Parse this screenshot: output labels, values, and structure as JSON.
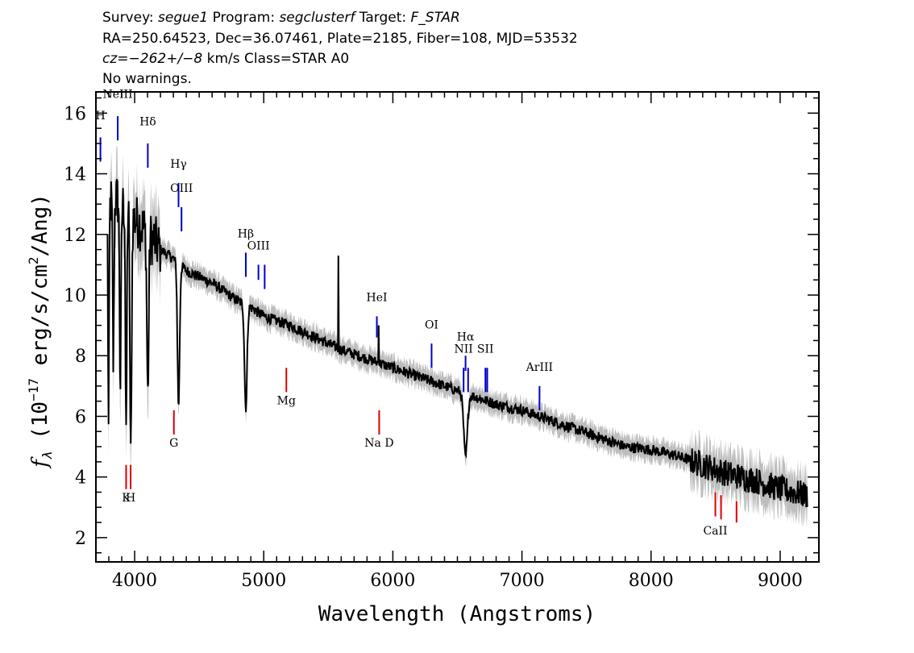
{
  "header": {
    "line1": {
      "survey_label": "Survey: ",
      "survey": "segue1",
      "program_label": " Program: ",
      "program": "segclusterf",
      "target_label": " Target: ",
      "target": "F_STAR"
    },
    "line2": "RA=250.64523, Dec=36.07461, Plate=2185, Fiber=108, MJD=53532",
    "line3": {
      "cz": "cz=−262+/−8",
      "rest": " km/s Class=STAR A0"
    },
    "line4": "No warnings."
  },
  "colors": {
    "flux": "#000000",
    "error_band": "#bdbdbd",
    "emission": "#0000cc",
    "absorption": "#dd0000"
  },
  "chart_data": {
    "type": "line",
    "xlabel": "Wavelength (Angstroms)",
    "ylabel": {
      "f": "f",
      "sub": "λ",
      "text1": " (10",
      "sup1": "−17",
      "text2": " erg/s/cm",
      "sup2": "2",
      "text3": "/Ang)"
    },
    "xlim": [
      3700,
      9300
    ],
    "ylim": [
      1.2,
      16.7
    ],
    "x_ticks": [
      4000,
      5000,
      6000,
      7000,
      8000,
      9000
    ],
    "y_ticks": [
      2,
      4,
      6,
      8,
      10,
      12,
      14,
      16
    ],
    "continuum_x": [
      3800,
      3850,
      3900,
      3950,
      4000,
      4050,
      4100,
      4150,
      4200,
      4300,
      4400,
      4500,
      4600,
      4700,
      4800,
      4900,
      5000,
      5200,
      5400,
      5600,
      5800,
      6000,
      6200,
      6400,
      6600,
      6800,
      7000,
      7200,
      7400,
      7600,
      7800,
      8000,
      8200,
      8400,
      8600,
      8800,
      9000,
      9200
    ],
    "continuum_y": [
      13.0,
      13.2,
      13.0,
      12.8,
      12.5,
      12.3,
      12.0,
      11.8,
      11.5,
      11.2,
      10.8,
      10.6,
      10.4,
      10.1,
      9.8,
      9.6,
      9.3,
      9.0,
      8.6,
      8.2,
      7.9,
      7.6,
      7.3,
      7.0,
      6.7,
      6.4,
      6.2,
      5.9,
      5.6,
      5.3,
      5.0,
      4.9,
      4.7,
      4.4,
      4.1,
      3.9,
      3.6,
      3.4
    ],
    "absorption_features": [
      {
        "x": 3798,
        "depth": 7.5,
        "width": 6
      },
      {
        "x": 3835,
        "depth": 5.5,
        "width": 7
      },
      {
        "x": 3889,
        "depth": 6.0,
        "width": 8
      },
      {
        "x": 3934,
        "depth": 8.0,
        "width": 7
      },
      {
        "x": 3970,
        "depth": 8.2,
        "width": 9
      },
      {
        "x": 4102,
        "depth": 5.3,
        "width": 10
      },
      {
        "x": 4340,
        "depth": 4.7,
        "width": 12
      },
      {
        "x": 4861,
        "depth": 3.4,
        "width": 14
      },
      {
        "x": 6563,
        "depth": 2.1,
        "width": 20
      }
    ],
    "spikes": [
      {
        "x": 5577,
        "y": 11.3
      },
      {
        "x": 5890,
        "y": 9.0
      }
    ],
    "emission_lines": [
      {
        "label": "H",
        "x": 3735,
        "y_top": 15.2,
        "y_bot": 14.4,
        "label_y": 15.8
      },
      {
        "label": "NeIII",
        "x": 3869,
        "y_top": 15.9,
        "y_bot": 15.1,
        "label_y": 16.5
      },
      {
        "label": "Hδ",
        "x": 4102,
        "y_top": 15.0,
        "y_bot": 14.2,
        "label_y": 15.6
      },
      {
        "label": "Hγ",
        "x": 4340,
        "y_top": 13.7,
        "y_bot": 12.9,
        "label_y": 14.2
      },
      {
        "label": "OIII",
        "x": 4363,
        "y_top": 12.9,
        "y_bot": 12.1,
        "label_y": 13.4
      },
      {
        "label": "Hβ",
        "x": 4861,
        "y_top": 11.4,
        "y_bot": 10.6,
        "label_y": 11.9
      },
      {
        "label": "OIII",
        "x": 4959,
        "y_top": 11.0,
        "y_bot": 10.5,
        "label_y": 11.5
      },
      {
        "label": "",
        "x": 5007,
        "y_top": 11.0,
        "y_bot": 10.2,
        "label_y": 11.5
      },
      {
        "label": "HeI",
        "x": 5876,
        "y_top": 9.3,
        "y_bot": 8.6,
        "label_y": 9.8
      },
      {
        "label": "OI",
        "x": 6300,
        "y_top": 8.4,
        "y_bot": 7.6,
        "label_y": 8.9
      },
      {
        "label": "NII",
        "x": 6548,
        "y_top": 7.6,
        "y_bot": 6.8,
        "label_y": 8.1
      },
      {
        "label": "Hα",
        "x": 6563,
        "y_top": 8.0,
        "y_bot": 7.5,
        "label_y": 8.5
      },
      {
        "label": "",
        "x": 6583,
        "y_top": 7.6,
        "y_bot": 6.8,
        "label_y": 8.1
      },
      {
        "label": "SII",
        "x": 6717,
        "y_top": 7.6,
        "y_bot": 6.8,
        "label_y": 8.1
      },
      {
        "label": "",
        "x": 6731,
        "y_top": 7.6,
        "y_bot": 6.8,
        "label_y": 8.1
      },
      {
        "label": "ArIII",
        "x": 7136,
        "y_top": 7.0,
        "y_bot": 6.2,
        "label_y": 7.5
      }
    ],
    "absorption_lines": [
      {
        "label": "K",
        "x": 3934,
        "y_top": 4.4,
        "y_bot": 3.6,
        "label_y": 3.2
      },
      {
        "label": "H",
        "x": 3969,
        "y_top": 4.4,
        "y_bot": 3.6,
        "label_y": 3.2
      },
      {
        "label": "G",
        "x": 4304,
        "y_top": 6.2,
        "y_bot": 5.4,
        "label_y": 5.0
      },
      {
        "label": "Mg",
        "x": 5175,
        "y_top": 7.6,
        "y_bot": 6.8,
        "label_y": 6.4
      },
      {
        "label": "Na D",
        "x": 5894,
        "y_top": 6.2,
        "y_bot": 5.4,
        "label_y": 5.0
      },
      {
        "label": "CaII",
        "x": 8498,
        "y_top": 3.5,
        "y_bot": 2.7,
        "label_y": 2.1
      },
      {
        "label": "",
        "x": 8542,
        "y_top": 3.4,
        "y_bot": 2.6,
        "label_y": 2.1
      },
      {
        "label": "",
        "x": 8662,
        "y_top": 3.2,
        "y_bot": 2.5,
        "label_y": 2.1
      }
    ]
  }
}
